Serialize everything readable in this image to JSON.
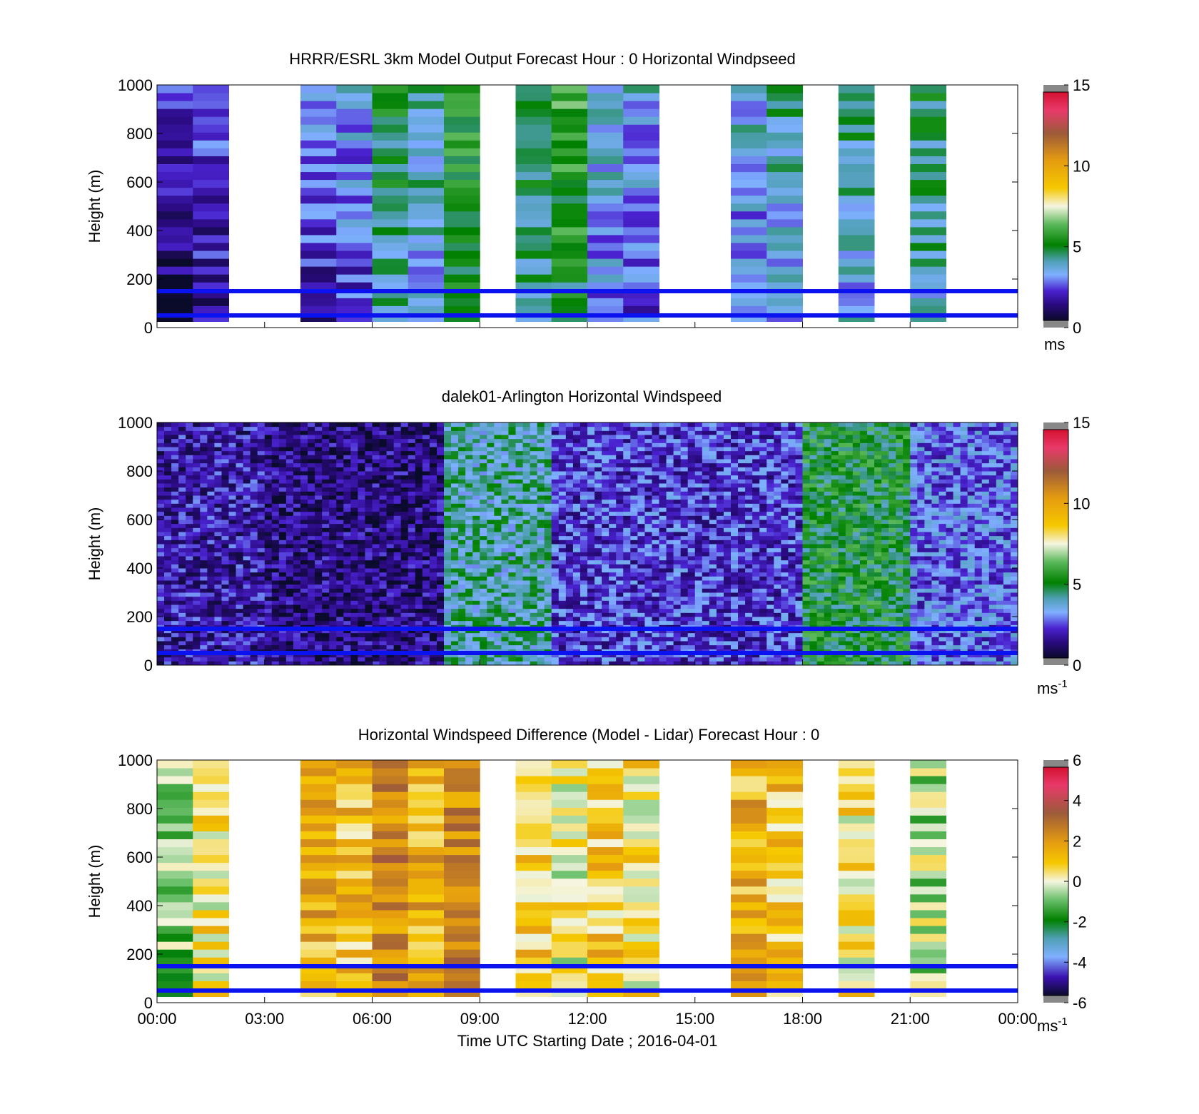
{
  "figure": {
    "xlabel": "Time UTC  Starting Date ; 2016-04-01",
    "x_ticks": [
      "00:00",
      "03:00",
      "06:00",
      "09:00",
      "12:00",
      "15:00",
      "18:00",
      "21:00",
      "00:00"
    ],
    "y_label": "Height (m)",
    "ref_line_color": "#0a12f0",
    "ref_line_heights": [
      150,
      50
    ]
  },
  "chart_data": [
    {
      "type": "heatmap",
      "title": "HRRR/ESRL 3km Model Output   Forecast Hour : 0 Horizontal Windpseed",
      "ylabel": "Height (m)",
      "xlabel": "",
      "x_range": [
        0,
        24
      ],
      "ylim": [
        0,
        1000
      ],
      "y_ticks": [
        "0",
        "200",
        "400",
        "600",
        "800",
        "1000"
      ],
      "colorbar": {
        "min": 0,
        "max": 15,
        "ticks": [
          "0",
          "5",
          "10",
          "15"
        ],
        "unit": "ms",
        "unit_sup": ""
      },
      "hourly_columns": [
        {
          "hour": 0,
          "value": 0.5
        },
        {
          "hour": 1,
          "value": 1.2
        },
        {
          "hour": 4,
          "value": 1.5
        },
        {
          "hour": 5,
          "value": 2.0
        },
        {
          "hour": 6,
          "value": 3.8
        },
        {
          "hour": 7,
          "value": 3.0
        },
        {
          "hour": 8,
          "value": 4.5
        },
        {
          "hour": 10,
          "value": 4.0
        },
        {
          "hour": 11,
          "value": 4.8
        },
        {
          "hour": 12,
          "value": 2.6
        },
        {
          "hour": 13,
          "value": 2.2
        },
        {
          "hour": 16,
          "value": 2.4
        },
        {
          "hour": 17,
          "value": 3.0
        },
        {
          "hour": 19,
          "value": 3.2
        },
        {
          "hour": 21,
          "value": 3.5
        }
      ],
      "reference_lines_m": [
        150,
        50
      ]
    },
    {
      "type": "heatmap",
      "title": "dalek01-Arlington  Horizontal Windspeed",
      "ylabel": "Height (m)",
      "xlabel": "",
      "x_range": [
        0,
        24
      ],
      "ylim": [
        0,
        1000
      ],
      "y_ticks": [
        "0",
        "200",
        "400",
        "600",
        "800",
        "1000"
      ],
      "colorbar": {
        "min": 0,
        "max": 15,
        "ticks": [
          "0",
          "5",
          "10",
          "15"
        ],
        "unit": "ms",
        "unit_sup": "-1"
      },
      "regions": [
        {
          "hours": [
            0,
            3
          ],
          "value": 1.5
        },
        {
          "hours": [
            3,
            8
          ],
          "value": 1.0
        },
        {
          "hours": [
            8,
            11
          ],
          "value": 4.0
        },
        {
          "hours": [
            11,
            18
          ],
          "value": 2.0
        },
        {
          "hours": [
            18,
            21
          ],
          "value": 5.0
        },
        {
          "hours": [
            21,
            24
          ],
          "value": 2.5
        }
      ],
      "reference_lines_m": [
        150,
        50
      ]
    },
    {
      "type": "heatmap",
      "title": "Horizontal Windspeed Difference (Model - Lidar) Forecast Hour : 0",
      "ylabel": "Height (m)",
      "xlabel": "Time UTC  Starting Date ; 2016-04-01",
      "x_range": [
        0,
        24
      ],
      "ylim": [
        0,
        1000
      ],
      "y_ticks": [
        "0",
        "200",
        "400",
        "600",
        "800",
        "1000"
      ],
      "colorbar": {
        "min": -6,
        "max": 6,
        "ticks": [
          "-6",
          "-4",
          "-2",
          "0",
          "2",
          "4",
          "6"
        ],
        "unit": "ms",
        "unit_sup": "-1"
      },
      "hourly_columns": [
        {
          "hour": 0,
          "value": -1.0
        },
        {
          "hour": 1,
          "value": 0.5
        },
        {
          "hour": 4,
          "value": 1.5
        },
        {
          "hour": 5,
          "value": 1.2
        },
        {
          "hour": 6,
          "value": 2.5
        },
        {
          "hour": 7,
          "value": 1.5
        },
        {
          "hour": 8,
          "value": 2.5
        },
        {
          "hour": 10,
          "value": 1.0
        },
        {
          "hour": 11,
          "value": 0.2
        },
        {
          "hour": 12,
          "value": 1.0
        },
        {
          "hour": 13,
          "value": 0.5
        },
        {
          "hour": 16,
          "value": 1.5
        },
        {
          "hour": 17,
          "value": 1.0
        },
        {
          "hour": 19,
          "value": 0.5
        },
        {
          "hour": 21,
          "value": -0.5
        }
      ],
      "reference_lines_m": [
        150,
        50
      ]
    }
  ]
}
